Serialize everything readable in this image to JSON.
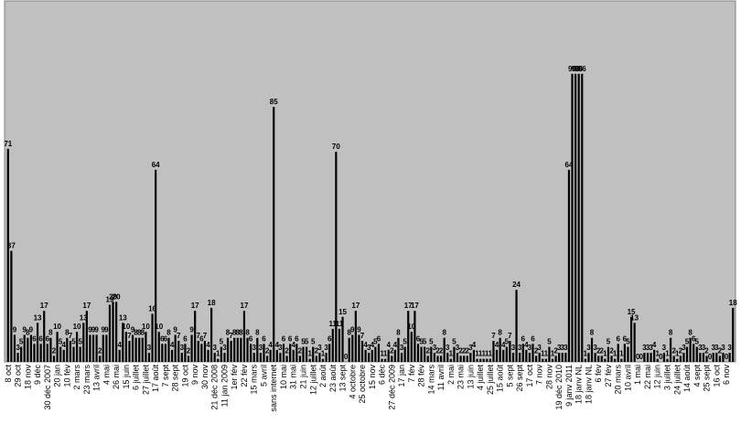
{
  "chart_data": {
    "type": "bar",
    "color": "#000000",
    "background": "#c0c0c0",
    "ylim": [
      0,
      120
    ],
    "categories": [
      "8 oct",
      null,
      null,
      "29 oct",
      null,
      null,
      "18 nov",
      null,
      null,
      "9 déc",
      null,
      null,
      "30 déc 2007",
      null,
      null,
      "20 jan",
      null,
      null,
      "10 fév",
      null,
      null,
      "2 mars",
      null,
      null,
      "23 mars",
      null,
      null,
      "13 avril",
      null,
      null,
      "4 mai",
      null,
      null,
      "26 mai",
      null,
      null,
      "15 juin",
      null,
      null,
      "6 juillet",
      null,
      null,
      "27 juillet",
      null,
      null,
      "17 août",
      null,
      null,
      "7 sept",
      null,
      null,
      "28 sept",
      null,
      null,
      "19 oct",
      null,
      null,
      "9 nov",
      null,
      null,
      "30 nov",
      null,
      null,
      "21 déc 2008",
      null,
      null,
      "11 jan 2009",
      null,
      null,
      "1er fév",
      null,
      null,
      "22 fév",
      null,
      null,
      "15 mars",
      null,
      null,
      "5 avril",
      null,
      null,
      "sans internet",
      null,
      null,
      "10 mai",
      null,
      null,
      "31 mai",
      null,
      null,
      "21 juin",
      null,
      null,
      "12 juillet",
      null,
      null,
      "2 août",
      null,
      null,
      "23 août",
      null,
      null,
      "13 sept",
      null,
      null,
      "4 octobre",
      null,
      null,
      "25 octobre",
      null,
      null,
      "15 nov",
      null,
      null,
      "6 déc",
      null,
      null,
      "27 déc 2009",
      null,
      null,
      "17 jan",
      null,
      null,
      "7 fév",
      null,
      null,
      "28 fév",
      null,
      null,
      "14 mars",
      null,
      null,
      "11 avril",
      null,
      null,
      "2 mai",
      null,
      null,
      "23 mai",
      null,
      null,
      "13 juin",
      null,
      null,
      "4 juillet",
      null,
      null,
      "25 juillet",
      null,
      null,
      "15 août",
      null,
      null,
      "5 sept",
      null,
      null,
      "26 sept",
      null,
      null,
      "17 oct",
      null,
      null,
      "7 nov",
      null,
      null,
      "28 nov",
      null,
      null,
      "19 déc 2010",
      null,
      null,
      "9 janv 2011",
      null,
      null,
      "18 janv NL",
      null,
      null,
      "18 janv NL",
      null,
      null,
      "6 fév",
      null,
      null,
      "27 fév",
      null,
      null,
      "20 mars",
      null,
      null,
      "10 avril",
      null,
      null,
      "1 mai",
      null,
      null,
      "22 mai",
      null,
      null,
      "12 juin",
      null,
      null,
      "3 juillet",
      null,
      null,
      "24 juillet",
      null,
      null,
      "14 août",
      null,
      null,
      "4 sept",
      null,
      null,
      "25 sept",
      null,
      null,
      "16 oct",
      null,
      null,
      "6 nov",
      null,
      null
    ],
    "values": [
      71,
      37,
      9,
      3,
      5,
      9,
      8,
      9,
      6,
      13,
      6,
      17,
      6,
      8,
      2,
      10,
      5,
      4,
      8,
      7,
      5,
      10,
      5,
      13,
      17,
      9,
      9,
      9,
      2,
      9,
      9,
      19,
      20,
      20,
      4,
      13,
      10,
      7,
      9,
      8,
      8,
      8,
      10,
      3,
      16,
      64,
      10,
      6,
      6,
      8,
      4,
      9,
      7,
      3,
      6,
      2,
      9,
      17,
      7,
      6,
      7,
      4,
      18,
      3,
      1,
      5,
      3,
      8,
      7,
      8,
      8,
      8,
      17,
      8,
      6,
      3,
      8,
      3,
      6,
      2,
      4,
      85,
      4,
      3,
      6,
      2,
      6,
      4,
      6,
      2,
      5,
      5,
      1,
      5,
      2,
      3,
      1,
      3,
      6,
      11,
      70,
      11,
      15,
      0,
      8,
      9,
      17,
      9,
      7,
      4,
      3,
      4,
      5,
      6,
      1,
      1,
      4,
      2,
      4,
      8,
      3,
      5,
      17,
      10,
      17,
      6,
      5,
      5,
      2,
      5,
      3,
      2,
      2,
      8,
      3,
      1,
      5,
      3,
      2,
      2,
      2,
      3,
      4,
      1,
      1,
      1,
      1,
      1,
      7,
      4,
      8,
      4,
      5,
      7,
      3,
      24,
      3,
      6,
      4,
      3,
      6,
      2,
      3,
      1,
      1,
      5,
      1,
      2,
      3,
      3,
      3,
      64,
      96,
      96,
      96,
      96,
      1,
      3,
      8,
      3,
      2,
      2,
      1,
      5,
      2,
      1,
      6,
      1,
      6,
      5,
      15,
      13,
      0,
      0,
      3,
      3,
      3,
      4,
      1,
      0,
      3,
      1,
      8,
      2,
      1,
      2,
      3,
      5,
      8,
      6,
      5,
      3,
      3,
      2,
      0,
      3,
      3,
      2,
      3,
      0,
      3,
      18
    ]
  }
}
